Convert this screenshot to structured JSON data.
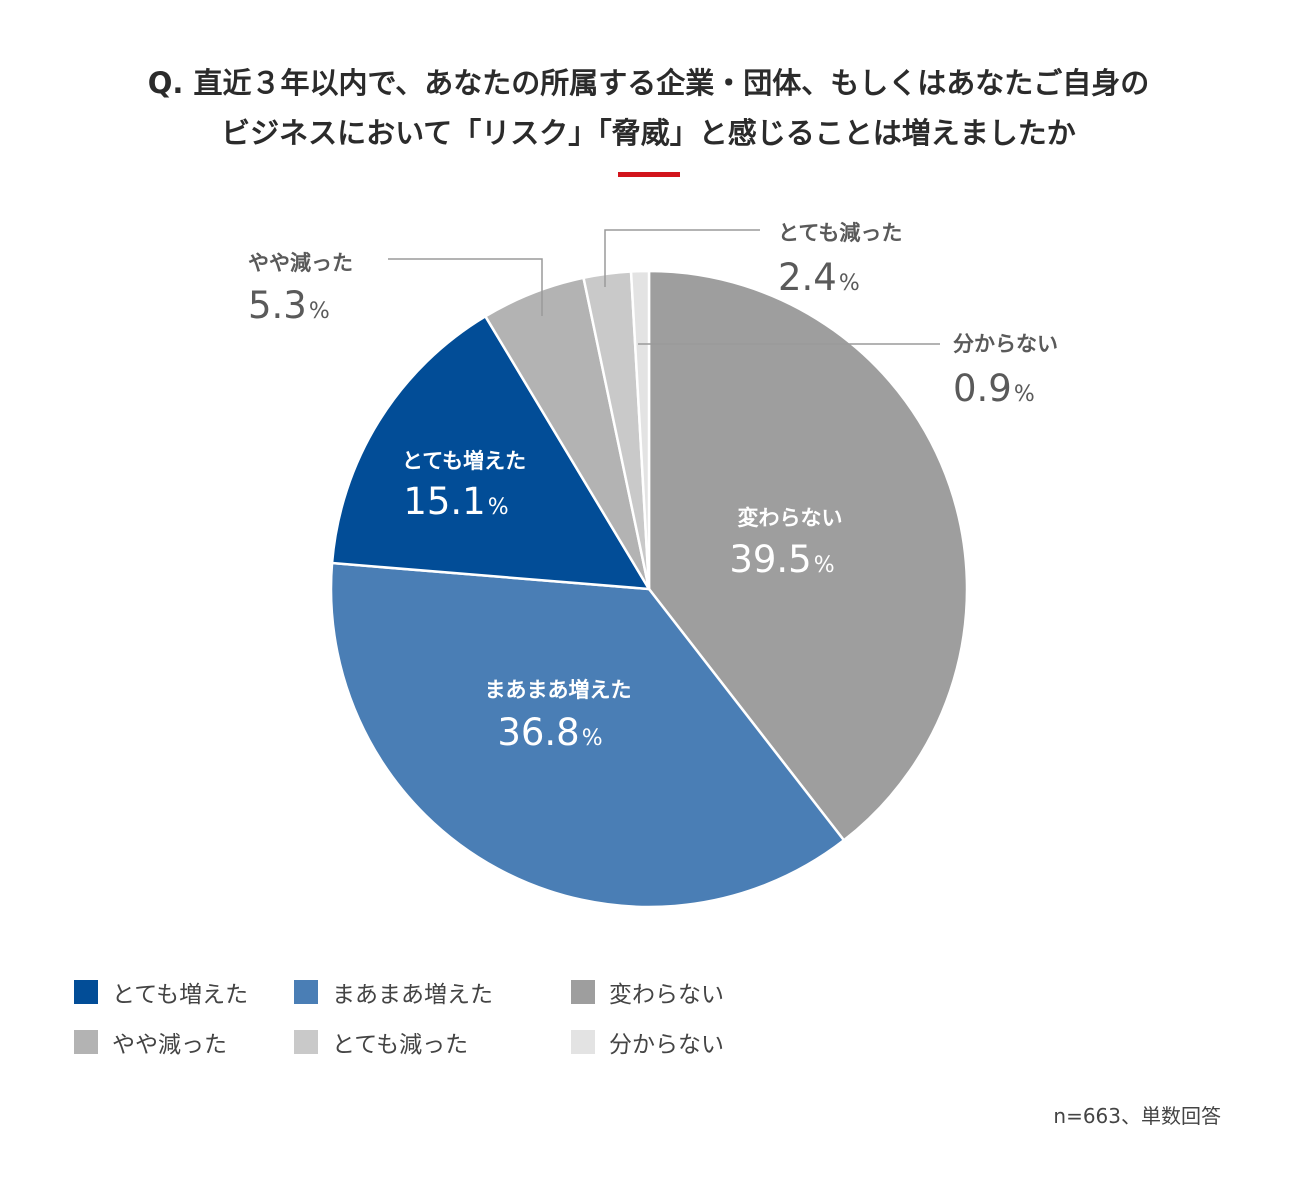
{
  "title": {
    "line1": "Q. 直近３年以内で、あなたの所属する企業・団体、もしくはあなたご自身の",
    "line2": "ビジネスにおいて「リスク」「脅威」と感じることは増えましたか"
  },
  "colors": {
    "accent": "#d2141c",
    "label_text": "#5a5a5a",
    "leader_line": "#9a9a9a"
  },
  "chart_data": {
    "type": "pie",
    "unit": "%",
    "slices": [
      {
        "label": "変わらない",
        "value": 39.5,
        "color": "#9e9e9e"
      },
      {
        "label": "まあまあ増えた",
        "value": 36.8,
        "color": "#4a7eb5"
      },
      {
        "label": "とても増えた",
        "value": 15.1,
        "color": "#024d97"
      },
      {
        "label": "やや減った",
        "value": 5.3,
        "color": "#b3b3b3"
      },
      {
        "label": "とても減った",
        "value": 2.4,
        "color": "#c9c9c9"
      },
      {
        "label": "分からない",
        "value": 0.9,
        "color": "#e3e3e3"
      }
    ],
    "legend": [
      {
        "label": "とても増えた",
        "color": "#024d97"
      },
      {
        "label": "まあまあ増えた",
        "color": "#4a7eb5"
      },
      {
        "label": "変わらない",
        "color": "#9e9e9e"
      },
      {
        "label": "やや減った",
        "color": "#b3b3b3"
      },
      {
        "label": "とても減った",
        "color": "#c9c9c9"
      },
      {
        "label": "分からない",
        "color": "#e3e3e3"
      }
    ],
    "legend_position": "bottom-left",
    "note": "n=663、単数回答"
  }
}
